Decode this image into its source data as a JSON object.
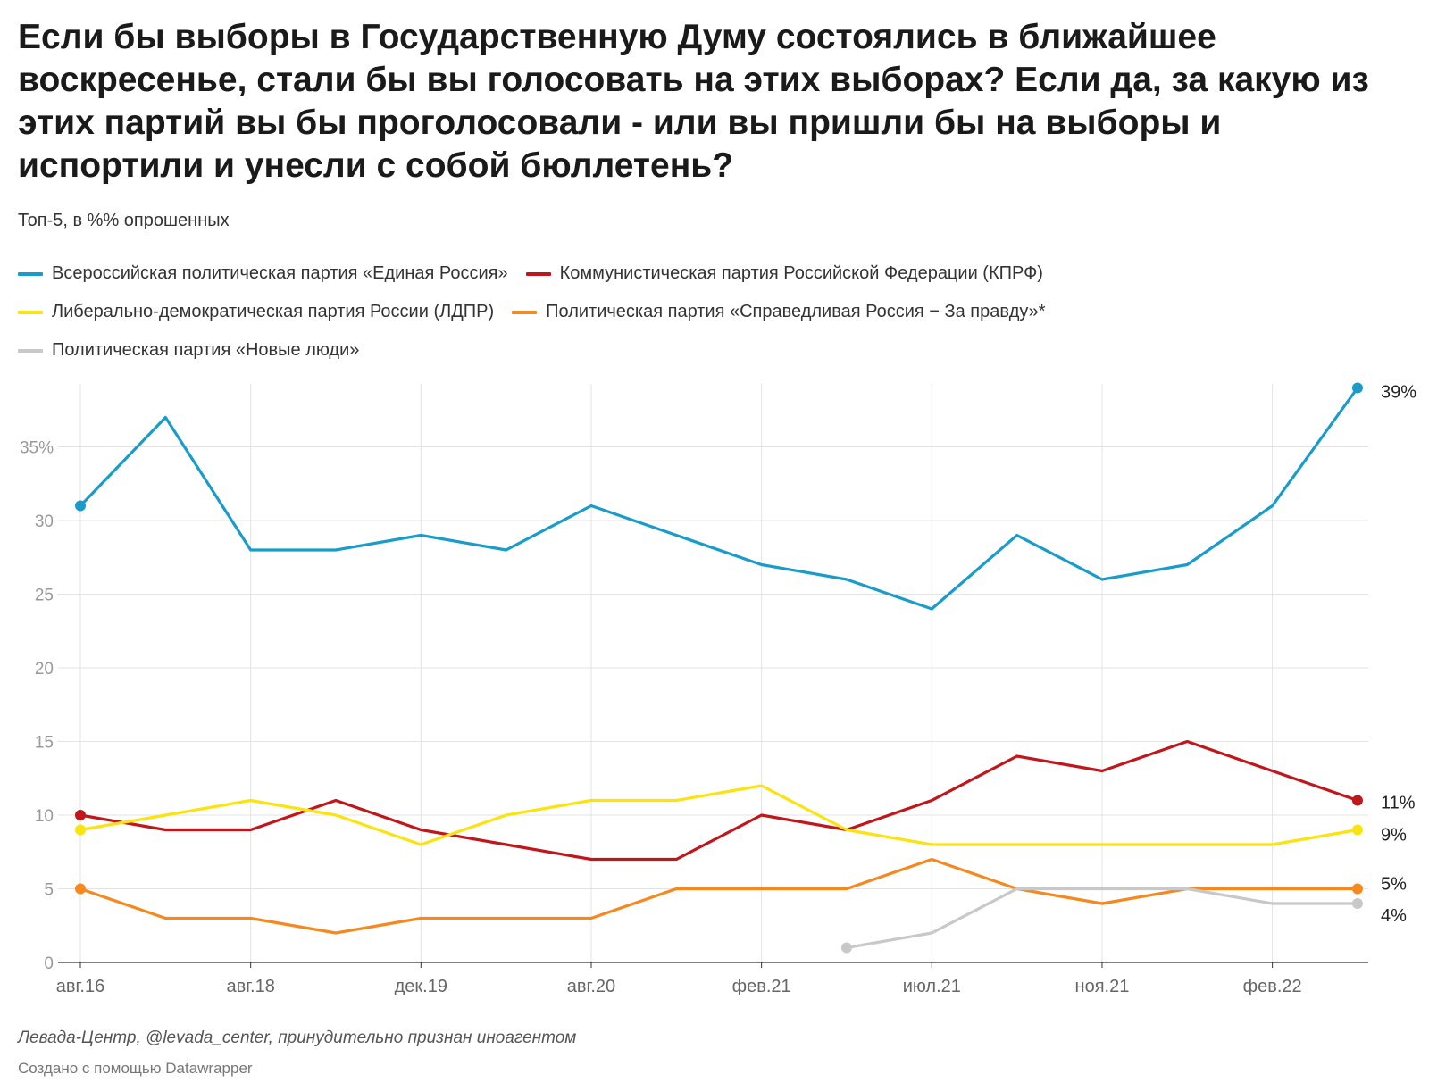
{
  "header": {
    "title": "Если бы выборы в Государственную Думу состоялись в ближайшее воскресенье, стали бы вы голосовать на этих выборах? Если да, за какую из этих партий вы бы проголосовали - или вы пришли бы на выборы и испортили и унесли с собой бюллетень?",
    "subtitle": "Топ-5, в %% опрошенных"
  },
  "legend": {
    "items": [
      {
        "label": "Всероссийская политическая партия «Единая Россия»",
        "color": "#1a9ccb"
      },
      {
        "label": "Коммунистическая партия Российской Федерации (КПРФ)",
        "color": "#c0171c"
      },
      {
        "label": "Либерально-демократическая партия России (ЛДПР)",
        "color": "#fbe30f"
      },
      {
        "label": "Политическая партия «Справедливая Россия − За правду»*",
        "color": "#f5881f"
      },
      {
        "label": "Политическая партия «Новые люди»",
        "color": "#c8c8c8"
      }
    ]
  },
  "chart_data": {
    "type": "line",
    "x": [
      "авг.16",
      "",
      "авг.18",
      "",
      "дек.19",
      "",
      "авг.20",
      "",
      "фев.21",
      "",
      "июл.21",
      "",
      "ноя.21",
      "",
      "фев.22",
      ""
    ],
    "x_tick_labels": [
      "авг.16",
      "авг.18",
      "дек.19",
      "авг.20",
      "фев.21",
      "июл.21",
      "ноя.21",
      "фев.22"
    ],
    "y_ticks": [
      "0",
      "5",
      "10",
      "15",
      "20",
      "25",
      "30",
      "35%"
    ],
    "ylim": [
      0,
      39
    ],
    "grid": true,
    "legend_position": "top",
    "series": [
      {
        "name": "Всероссийская политическая партия «Единая Россия»",
        "color": "#1a9ccb",
        "values": [
          31,
          37,
          28,
          28,
          29,
          28,
          31,
          29,
          27,
          26,
          24,
          29,
          26,
          27,
          31,
          39
        ],
        "end_label": "39%"
      },
      {
        "name": "Коммунистическая партия Российской Федерации (КПРФ)",
        "color": "#c0171c",
        "values": [
          10,
          9,
          9,
          11,
          9,
          8,
          7,
          7,
          10,
          9,
          11,
          14,
          13,
          15,
          13,
          11
        ],
        "end_label": "11%"
      },
      {
        "name": "Либерально-демократическая партия России (ЛДПР)",
        "color": "#fbe30f",
        "values": [
          9,
          10,
          11,
          10,
          8,
          10,
          11,
          11,
          12,
          9,
          8,
          8,
          8,
          8,
          8,
          9
        ],
        "end_label": "9%"
      },
      {
        "name": "Политическая партия «Справедливая Россия − За правду»*",
        "color": "#f5881f",
        "values": [
          5,
          3,
          3,
          2,
          3,
          3,
          3,
          5,
          5,
          5,
          7,
          5,
          4,
          5,
          5,
          5
        ],
        "end_label": "5%"
      },
      {
        "name": "Политическая партия «Новые люди»",
        "color": "#c8c8c8",
        "values": [
          null,
          null,
          null,
          null,
          null,
          null,
          null,
          null,
          null,
          1,
          2,
          5,
          5,
          5,
          4,
          4
        ],
        "end_label": "4%"
      }
    ]
  },
  "footer": {
    "source": "Левада-Центр, @levada_center, принудительно признан иноагентом",
    "credit": "Создано с помощью Datawrapper"
  }
}
